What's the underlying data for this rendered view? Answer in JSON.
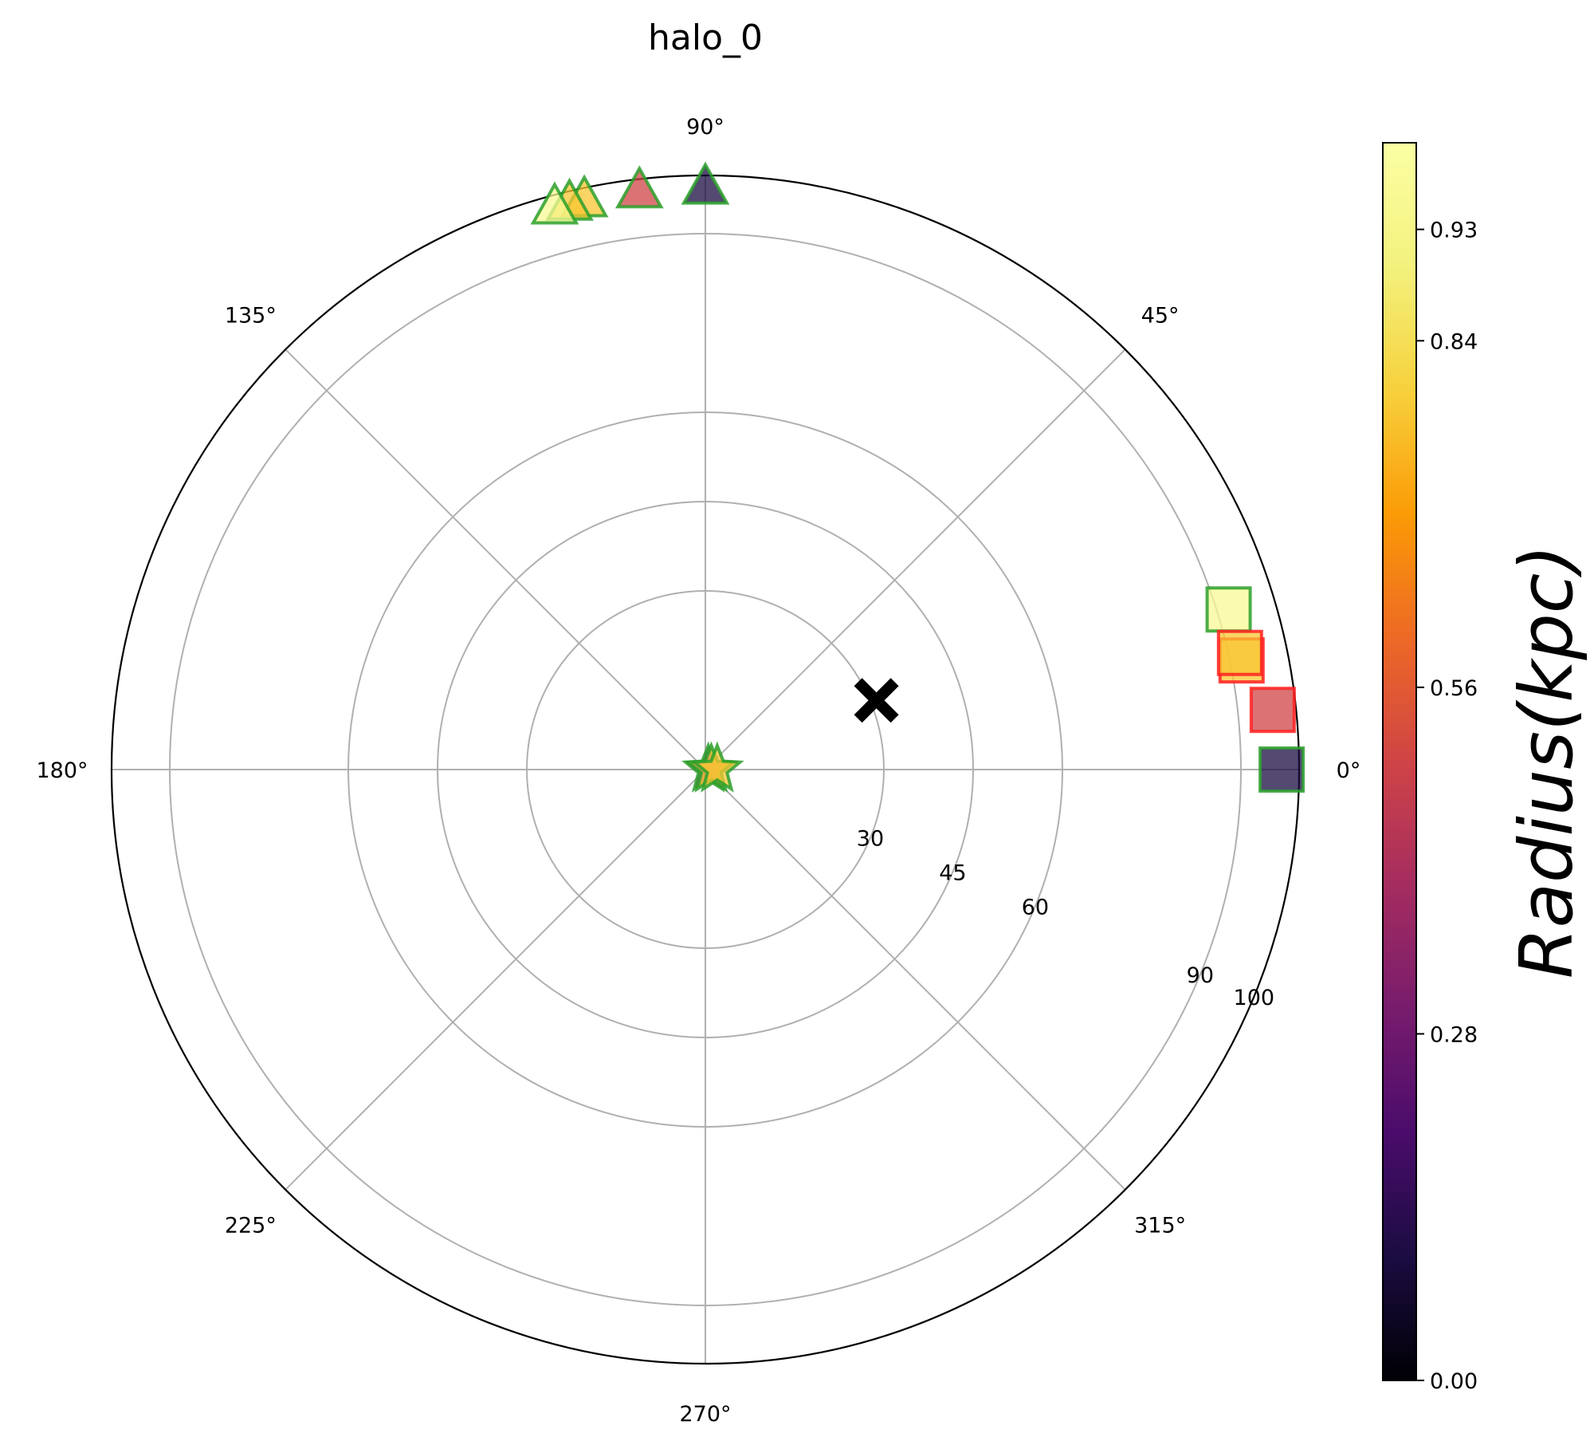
{
  "chart_data": {
    "type": "scatter",
    "projection": "polar",
    "title": "halo_0",
    "theta_tick_labels": [
      "0°",
      "45°",
      "90°",
      "135°",
      "180°",
      "225°",
      "270°",
      "315°"
    ],
    "theta_ticks_deg": [
      0,
      45,
      90,
      135,
      180,
      225,
      270,
      315
    ],
    "radial_scale": "nonlinear (30, 45, 60, 90, 100 at equal spacing)",
    "radial_tick_values": [
      30,
      45,
      60,
      90,
      100
    ],
    "radial_tick_labels": [
      "30",
      "45",
      "60",
      "90",
      "100"
    ],
    "radial_tick_label_angle_deg": -22.5,
    "grid": true,
    "colorbar": {
      "label": "Radius(kpc)",
      "colormap": "inferno",
      "range": [
        0,
        1
      ],
      "tick_values": [
        0.0,
        0.28,
        0.56,
        0.84,
        0.93
      ],
      "tick_labels": [
        "0.00",
        "0.28",
        "0.56",
        "0.84",
        "0.93"
      ]
    },
    "series": [
      {
        "marker": "triangle",
        "edge_color": "#2ca02c",
        "points": [
          {
            "theta_deg": 90.0,
            "r": 98,
            "color_value": 0.1
          },
          {
            "theta_deg": 96.5,
            "r": 98,
            "color_value": 0.5
          },
          {
            "theta_deg": 102.0,
            "r": 98,
            "color_value": 0.78
          },
          {
            "theta_deg": 103.5,
            "r": 98,
            "color_value": 0.78
          },
          {
            "theta_deg": 105.0,
            "r": 98,
            "color_value": 0.96
          }
        ]
      },
      {
        "marker": "square",
        "edge_color": "#2ca02c",
        "points": [
          {
            "theta_deg": 0.0,
            "r": 97,
            "color_value": 0.1
          },
          {
            "theta_deg": 17.0,
            "r": 92,
            "color_value": 0.96
          }
        ]
      },
      {
        "marker": "square",
        "edge_color": "#ff2020",
        "points": [
          {
            "theta_deg": 6.0,
            "r": 96,
            "color_value": 0.5
          },
          {
            "theta_deg": 11.5,
            "r": 92,
            "color_value": 0.78
          },
          {
            "theta_deg": 12.3,
            "r": 92,
            "color_value": 0.78
          }
        ]
      },
      {
        "marker": "star",
        "edge_color": "#2ca02c",
        "points": [
          {
            "theta_deg": 0.0,
            "r": 0.5,
            "color_value": 0.35
          },
          {
            "theta_deg": 0.0,
            "r": 1.0,
            "color_value": 0.78
          },
          {
            "theta_deg": 0.0,
            "r": 2.0,
            "color_value": 0.78
          }
        ]
      },
      {
        "marker": "x",
        "fill_color": "#000000",
        "points": [
          {
            "theta_deg": 22.0,
            "r": 31
          }
        ]
      }
    ]
  }
}
